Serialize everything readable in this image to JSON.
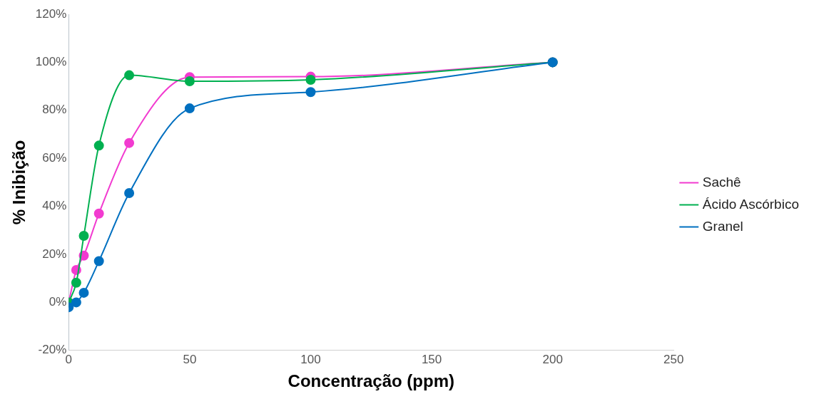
{
  "chart_data": {
    "type": "line",
    "xlabel": "Concentração (ppm)",
    "ylabel": "% Inibição",
    "x": [
      0,
      3.125,
      6.25,
      12.5,
      25,
      50,
      100,
      200
    ],
    "series": [
      {
        "name": "Sachê",
        "color": "#f23bd0",
        "values": [
          0,
          13.5,
          19.5,
          37,
          66.4,
          93.8,
          94,
          100
        ]
      },
      {
        "name": "Ácido Ascórbico",
        "color": "#00b050",
        "values": [
          0,
          8.2,
          27.7,
          65.3,
          94.6,
          92.1,
          92.7,
          100
        ]
      },
      {
        "name": "Granel",
        "color": "#0070c0",
        "values": [
          -2,
          0,
          4,
          17.2,
          45.5,
          80.8,
          87.6,
          100
        ]
      }
    ],
    "xlim": [
      0,
      250
    ],
    "xticks": [
      0,
      50,
      100,
      150,
      200,
      250
    ],
    "ylim": [
      -20,
      120
    ],
    "yticks": [
      {
        "value": -20,
        "label": "-20%"
      },
      {
        "value": 0,
        "label": "0%"
      },
      {
        "value": 20,
        "label": "20%"
      },
      {
        "value": 40,
        "label": "40%"
      },
      {
        "value": 60,
        "label": "60%"
      },
      {
        "value": 80,
        "label": "80%"
      },
      {
        "value": 100,
        "label": "100%"
      },
      {
        "value": 120,
        "label": "120%"
      }
    ],
    "grid": false,
    "legend": "right",
    "marker": "circle",
    "line_style": "solid"
  }
}
